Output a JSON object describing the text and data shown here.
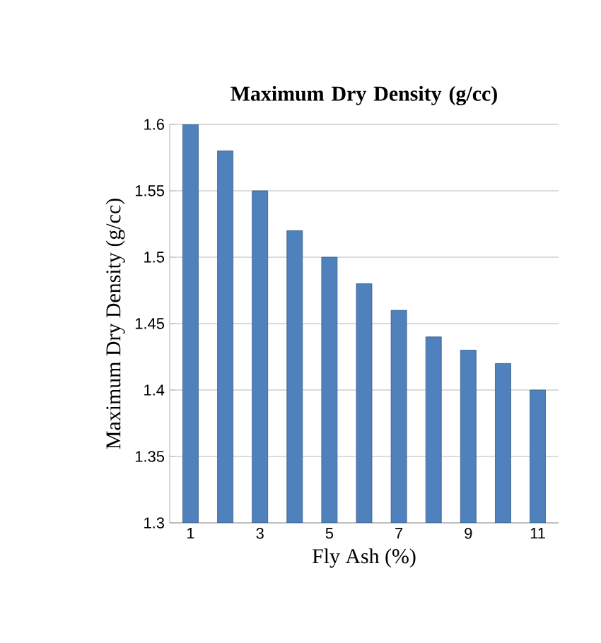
{
  "chart_data": {
    "type": "bar",
    "title": "Maximum Dry Density (g/cc)",
    "xlabel": "Fly Ash (%)",
    "ylabel": "Maximum Dry Density (g/cc)",
    "categories": [
      "1",
      null,
      "3",
      null,
      "5",
      null,
      "7",
      null,
      "9",
      null,
      "11"
    ],
    "values": [
      1.6,
      1.58,
      1.55,
      1.52,
      1.5,
      1.48,
      1.46,
      1.44,
      1.43,
      1.42,
      1.4
    ],
    "color": "#4f81bd",
    "ylim": [
      1.3,
      1.6
    ],
    "yticks": [
      1.3,
      1.35,
      1.4,
      1.45,
      1.5,
      1.55,
      1.6
    ],
    "grid": "y"
  }
}
